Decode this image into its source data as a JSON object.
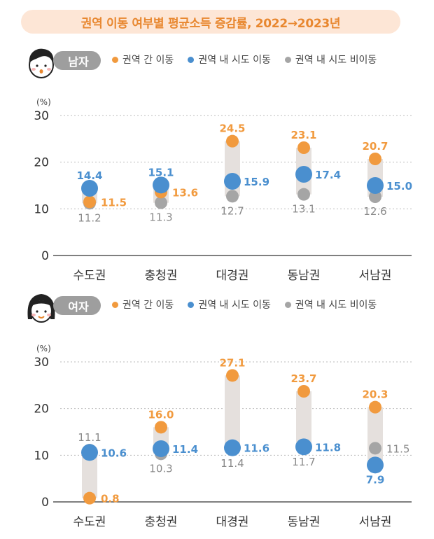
{
  "title": "권역 이동 여부별 평균소득 증감률, 2022→2023년",
  "colors": {
    "inter_region": "#f19a3e",
    "intra_region": "#4a8fcf",
    "non_moving": "#a5a5a5",
    "bar": "#e5e0dd",
    "title_bg": "#fde6d6",
    "title_text": "#e8872f"
  },
  "legend": {
    "inter": "권역 간 이동",
    "intra": "권역 내 시도 이동",
    "non": "권역 내 시도 비이동"
  },
  "chart_data": [
    {
      "type": "dot-range",
      "panel": "남자",
      "unit_label": "(%)",
      "categories": [
        "수도권",
        "충청권",
        "대경권",
        "동남권",
        "서남권"
      ],
      "ylim": [
        0,
        30
      ],
      "yticks": [
        0,
        10,
        20,
        30
      ],
      "grid": true,
      "series": [
        {
          "name": "권역 간 이동",
          "values": [
            11.5,
            13.6,
            24.5,
            23.1,
            20.7
          ]
        },
        {
          "name": "권역 내 시도 이동",
          "values": [
            14.4,
            15.1,
            15.9,
            17.4,
            15.0
          ]
        },
        {
          "name": "권역 내 시도 비이동",
          "values": [
            11.2,
            11.3,
            12.7,
            13.1,
            12.6
          ]
        }
      ]
    },
    {
      "type": "dot-range",
      "panel": "여자",
      "unit_label": "(%)",
      "categories": [
        "수도권",
        "충청권",
        "대경권",
        "동남권",
        "서남권"
      ],
      "ylim": [
        0,
        30
      ],
      "yticks": [
        0,
        10,
        20,
        30
      ],
      "grid": true,
      "series": [
        {
          "name": "권역 간 이동",
          "values": [
            0.8,
            16.0,
            27.1,
            23.7,
            20.3
          ]
        },
        {
          "name": "권역 내 시도 이동",
          "values": [
            10.6,
            11.4,
            11.6,
            11.8,
            7.9
          ]
        },
        {
          "name": "권역 내 시도 비이동",
          "values": [
            11.1,
            10.3,
            11.4,
            11.7,
            11.5
          ]
        }
      ]
    }
  ]
}
